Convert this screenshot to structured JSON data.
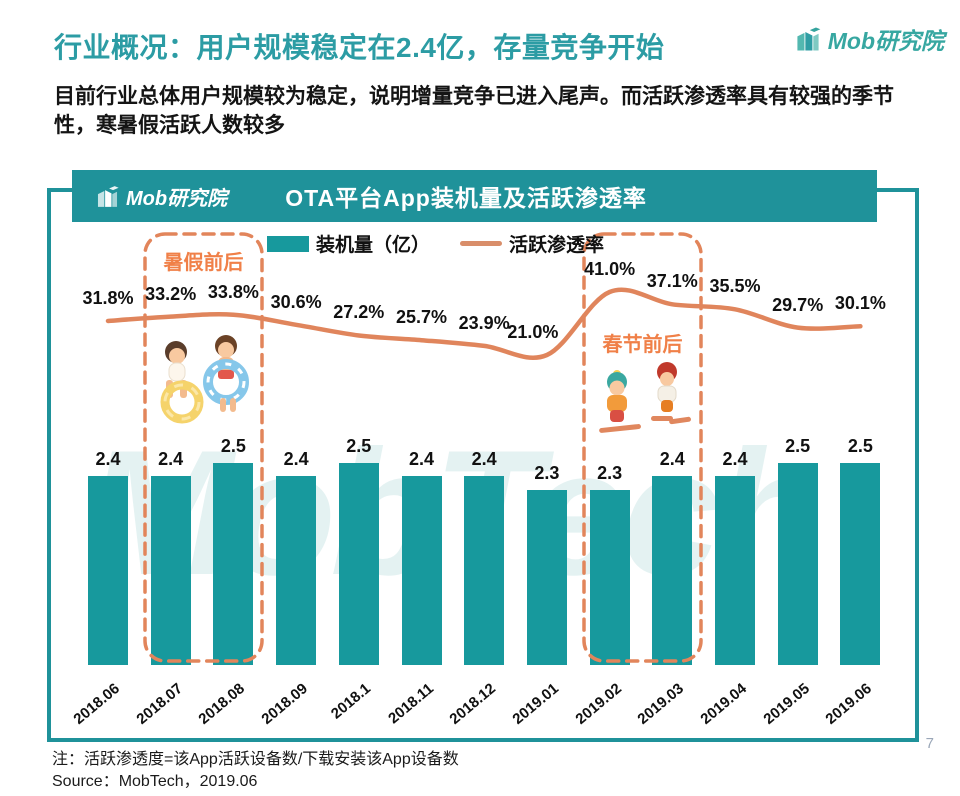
{
  "page": {
    "title": "行业概况：用户规模稳定在2.4亿，存量竞争开始",
    "subtitle": "目前行业总体用户规模较为稳定，说明增量竞争已进入尾声。而活跃渗透率具有较强的季节性，寒暑假活跃人数较多",
    "note": "注：活跃渗透度=该App活跃设备数/下载安装该App设备数",
    "source": "Source：MobTech，2019.06",
    "page_number": "7"
  },
  "logo": {
    "text": "Mob研究院"
  },
  "chart": {
    "title": "OTA平台App装机量及活跃渗透率",
    "watermark": "MobTech",
    "legend": [
      {
        "label": "装机量（亿）",
        "type": "bar",
        "color": "#17999D"
      },
      {
        "label": "活跃渗透率",
        "type": "line",
        "color": "#E0855C"
      }
    ],
    "annotations": [
      {
        "label": "暑假前后"
      },
      {
        "label": "春节前后"
      }
    ]
  },
  "chart_data": {
    "type": "bar",
    "combo": "bar+line",
    "title": "OTA平台App装机量及活跃渗透率",
    "categories": [
      "2018.06",
      "2018.07",
      "2018.08",
      "2018.09",
      "2018.1",
      "2018.11",
      "2018.12",
      "2019.01",
      "2019.02",
      "2019.03",
      "2019.04",
      "2019.05",
      "2019.06"
    ],
    "series": [
      {
        "name": "装机量（亿）",
        "type": "bar",
        "values": [
          2.4,
          2.4,
          2.5,
          2.4,
          2.5,
          2.4,
          2.4,
          2.3,
          2.3,
          2.4,
          2.4,
          2.5,
          2.5
        ]
      },
      {
        "name": "活跃渗透率",
        "type": "line",
        "unit": "%",
        "values": [
          31.8,
          33.2,
          33.8,
          30.6,
          27.2,
          25.7,
          23.9,
          21.0,
          41.0,
          37.1,
          35.5,
          29.7,
          30.1
        ]
      }
    ],
    "xlabel": "",
    "ylabel": "",
    "grid": false,
    "legend_position": "top",
    "annotations": [
      {
        "label": "暑假前后",
        "categories": [
          "2018.07",
          "2018.08"
        ]
      },
      {
        "label": "春节前后",
        "categories": [
          "2019.02",
          "2019.03"
        ]
      }
    ]
  },
  "colors": {
    "title_teal": "#2C9CA4",
    "header_teal": "#1F929A",
    "bar_teal": "#17999D",
    "line_orange": "#E0855C",
    "annotation_orange": "#F08048",
    "dash_orange": "#E2855B"
  }
}
